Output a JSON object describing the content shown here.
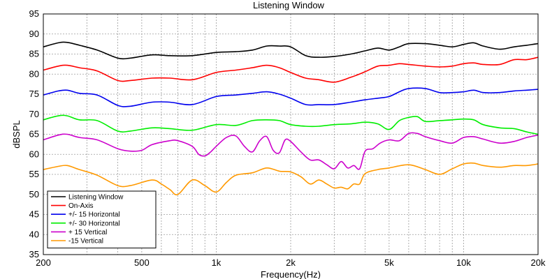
{
  "chart_data": {
    "type": "line",
    "title": "Listening Window",
    "xlabel": "Frequency(Hz)",
    "ylabel": "dBSPL",
    "xscale": "log",
    "xlim": [
      200,
      20000
    ],
    "ylim": [
      35,
      95
    ],
    "grid": true,
    "legend_position": "bottom-left",
    "xticks": [
      {
        "value": 200,
        "label": "200"
      },
      {
        "value": 500,
        "label": "500"
      },
      {
        "value": 1000,
        "label": "1k"
      },
      {
        "value": 2000,
        "label": "2k"
      },
      {
        "value": 5000,
        "label": "5k"
      },
      {
        "value": 10000,
        "label": "10k"
      },
      {
        "value": 20000,
        "label": "20k"
      }
    ],
    "yticks": [
      35,
      40,
      45,
      50,
      55,
      60,
      65,
      70,
      75,
      80,
      85,
      90,
      95
    ],
    "series": [
      {
        "name": "Listening Window",
        "color": "#000000",
        "points": [
          [
            200,
            86.8
          ],
          [
            230,
            87.8
          ],
          [
            250,
            87.9
          ],
          [
            280,
            87.2
          ],
          [
            330,
            86.0
          ],
          [
            400,
            84.0
          ],
          [
            450,
            84.0
          ],
          [
            550,
            84.8
          ],
          [
            650,
            84.6
          ],
          [
            800,
            84.6
          ],
          [
            1000,
            85.4
          ],
          [
            1200,
            85.6
          ],
          [
            1400,
            86.0
          ],
          [
            1600,
            87.0
          ],
          [
            1800,
            87.0
          ],
          [
            2000,
            86.8
          ],
          [
            2300,
            84.6
          ],
          [
            2600,
            84.2
          ],
          [
            3000,
            84.4
          ],
          [
            3500,
            85.0
          ],
          [
            4000,
            85.8
          ],
          [
            4500,
            86.5
          ],
          [
            5000,
            86.0
          ],
          [
            5500,
            86.8
          ],
          [
            6000,
            87.6
          ],
          [
            7000,
            87.6
          ],
          [
            8000,
            87.2
          ],
          [
            9000,
            86.8
          ],
          [
            10000,
            87.4
          ],
          [
            11000,
            87.8
          ],
          [
            12000,
            87.0
          ],
          [
            14000,
            86.2
          ],
          [
            16000,
            86.8
          ],
          [
            18000,
            87.2
          ],
          [
            20000,
            87.6
          ]
        ]
      },
      {
        "name": "On-Axis",
        "color": "#ff0000",
        "points": [
          [
            200,
            81.0
          ],
          [
            230,
            82.0
          ],
          [
            250,
            82.2
          ],
          [
            280,
            81.6
          ],
          [
            330,
            80.8
          ],
          [
            400,
            78.4
          ],
          [
            450,
            78.4
          ],
          [
            550,
            79.0
          ],
          [
            650,
            79.0
          ],
          [
            800,
            78.6
          ],
          [
            1000,
            80.4
          ],
          [
            1200,
            81.0
          ],
          [
            1400,
            81.6
          ],
          [
            1600,
            82.2
          ],
          [
            1800,
            81.6
          ],
          [
            2000,
            80.4
          ],
          [
            2300,
            79.0
          ],
          [
            2600,
            78.6
          ],
          [
            3000,
            78.0
          ],
          [
            3500,
            79.2
          ],
          [
            4000,
            80.6
          ],
          [
            4500,
            82.0
          ],
          [
            5000,
            82.2
          ],
          [
            5500,
            82.6
          ],
          [
            6000,
            82.4
          ],
          [
            7000,
            82.0
          ],
          [
            8000,
            81.8
          ],
          [
            9000,
            82.0
          ],
          [
            10000,
            82.6
          ],
          [
            11000,
            82.8
          ],
          [
            12000,
            82.4
          ],
          [
            14000,
            82.4
          ],
          [
            16000,
            83.6
          ],
          [
            18000,
            83.6
          ],
          [
            20000,
            84.2
          ]
        ]
      },
      {
        "name": "+/- 15 Horizontal",
        "color": "#0000ee",
        "points": [
          [
            200,
            74.8
          ],
          [
            230,
            75.8
          ],
          [
            250,
            76.0
          ],
          [
            280,
            75.2
          ],
          [
            330,
            74.8
          ],
          [
            400,
            72.2
          ],
          [
            450,
            72.0
          ],
          [
            550,
            73.0
          ],
          [
            650,
            73.0
          ],
          [
            800,
            72.4
          ],
          [
            1000,
            74.4
          ],
          [
            1200,
            74.8
          ],
          [
            1400,
            75.2
          ],
          [
            1600,
            75.6
          ],
          [
            1800,
            75.0
          ],
          [
            2000,
            74.0
          ],
          [
            2300,
            72.4
          ],
          [
            2600,
            72.4
          ],
          [
            3000,
            72.4
          ],
          [
            3500,
            73.0
          ],
          [
            4000,
            73.6
          ],
          [
            4500,
            74.0
          ],
          [
            5000,
            74.4
          ],
          [
            5500,
            75.6
          ],
          [
            6000,
            76.4
          ],
          [
            7000,
            76.4
          ],
          [
            8000,
            75.4
          ],
          [
            9000,
            75.4
          ],
          [
            10000,
            75.6
          ],
          [
            11000,
            76.0
          ],
          [
            12000,
            75.4
          ],
          [
            14000,
            75.4
          ],
          [
            16000,
            75.8
          ],
          [
            18000,
            76.0
          ],
          [
            20000,
            76.2
          ]
        ]
      },
      {
        "name": "+/- 30 Horizontal",
        "color": "#00ee00",
        "points": [
          [
            200,
            68.6
          ],
          [
            230,
            69.6
          ],
          [
            250,
            69.6
          ],
          [
            280,
            68.6
          ],
          [
            330,
            68.4
          ],
          [
            400,
            65.8
          ],
          [
            450,
            65.8
          ],
          [
            550,
            66.6
          ],
          [
            650,
            66.4
          ],
          [
            800,
            66.0
          ],
          [
            1000,
            67.4
          ],
          [
            1200,
            67.2
          ],
          [
            1400,
            68.4
          ],
          [
            1600,
            68.6
          ],
          [
            1800,
            68.4
          ],
          [
            2000,
            67.4
          ],
          [
            2300,
            67.0
          ],
          [
            2600,
            67.0
          ],
          [
            3000,
            67.4
          ],
          [
            3500,
            67.6
          ],
          [
            4000,
            68.0
          ],
          [
            4500,
            67.6
          ],
          [
            5000,
            66.2
          ],
          [
            5500,
            68.4
          ],
          [
            6000,
            69.2
          ],
          [
            6500,
            69.4
          ],
          [
            7000,
            68.2
          ],
          [
            8000,
            68.4
          ],
          [
            9000,
            68.6
          ],
          [
            10000,
            68.8
          ],
          [
            11000,
            68.6
          ],
          [
            12000,
            67.4
          ],
          [
            14000,
            66.6
          ],
          [
            16000,
            66.4
          ],
          [
            18000,
            65.6
          ],
          [
            20000,
            65.0
          ]
        ]
      },
      {
        "name": "+ 15 Vertical",
        "color": "#cc00cc",
        "points": [
          [
            200,
            63.6
          ],
          [
            230,
            64.8
          ],
          [
            250,
            65.0
          ],
          [
            280,
            64.2
          ],
          [
            330,
            63.6
          ],
          [
            400,
            61.4
          ],
          [
            450,
            60.8
          ],
          [
            500,
            61.0
          ],
          [
            550,
            62.4
          ],
          [
            650,
            63.4
          ],
          [
            700,
            63.4
          ],
          [
            800,
            62.0
          ],
          [
            850,
            60.0
          ],
          [
            900,
            59.6
          ],
          [
            950,
            60.6
          ],
          [
            1000,
            62.0
          ],
          [
            1100,
            64.2
          ],
          [
            1200,
            64.6
          ],
          [
            1300,
            62.0
          ],
          [
            1400,
            60.6
          ],
          [
            1500,
            63.4
          ],
          [
            1600,
            64.4
          ],
          [
            1700,
            61.0
          ],
          [
            1800,
            60.4
          ],
          [
            1900,
            63.6
          ],
          [
            2000,
            63.2
          ],
          [
            2200,
            60.6
          ],
          [
            2400,
            58.6
          ],
          [
            2600,
            58.6
          ],
          [
            2800,
            57.4
          ],
          [
            3000,
            56.4
          ],
          [
            3200,
            58.2
          ],
          [
            3400,
            56.6
          ],
          [
            3600,
            57.2
          ],
          [
            3800,
            56.4
          ],
          [
            4000,
            60.8
          ],
          [
            4300,
            61.4
          ],
          [
            4600,
            62.8
          ],
          [
            5000,
            63.6
          ],
          [
            5500,
            63.4
          ],
          [
            6000,
            65.2
          ],
          [
            6500,
            65.2
          ],
          [
            7000,
            64.4
          ],
          [
            8000,
            63.4
          ],
          [
            9000,
            62.8
          ],
          [
            10000,
            64.2
          ],
          [
            11000,
            64.4
          ],
          [
            12000,
            63.8
          ],
          [
            14000,
            62.8
          ],
          [
            16000,
            63.2
          ],
          [
            18000,
            64.2
          ],
          [
            20000,
            64.8
          ]
        ]
      },
      {
        "name": "-15 Vertical",
        "color": "#ff9900",
        "points": [
          [
            200,
            56.2
          ],
          [
            230,
            57.0
          ],
          [
            250,
            57.2
          ],
          [
            280,
            56.2
          ],
          [
            330,
            54.8
          ],
          [
            400,
            52.2
          ],
          [
            450,
            52.2
          ],
          [
            550,
            53.6
          ],
          [
            600,
            52.6
          ],
          [
            650,
            51.2
          ],
          [
            700,
            50.0
          ],
          [
            800,
            53.6
          ],
          [
            900,
            52.2
          ],
          [
            1000,
            50.6
          ],
          [
            1100,
            53.0
          ],
          [
            1200,
            54.8
          ],
          [
            1400,
            55.4
          ],
          [
            1600,
            56.6
          ],
          [
            1800,
            55.8
          ],
          [
            2000,
            55.6
          ],
          [
            2200,
            54.4
          ],
          [
            2400,
            52.6
          ],
          [
            2600,
            53.6
          ],
          [
            2800,
            52.6
          ],
          [
            3000,
            51.6
          ],
          [
            3200,
            51.8
          ],
          [
            3400,
            51.4
          ],
          [
            3600,
            52.6
          ],
          [
            3800,
            52.6
          ],
          [
            4000,
            55.2
          ],
          [
            4500,
            56.2
          ],
          [
            5000,
            56.6
          ],
          [
            6000,
            57.4
          ],
          [
            7000,
            56.2
          ],
          [
            8000,
            55.0
          ],
          [
            9000,
            56.4
          ],
          [
            10000,
            57.6
          ],
          [
            11000,
            57.8
          ],
          [
            12000,
            57.2
          ],
          [
            14000,
            56.8
          ],
          [
            16000,
            57.2
          ],
          [
            18000,
            57.2
          ],
          [
            20000,
            57.6
          ]
        ]
      }
    ]
  }
}
